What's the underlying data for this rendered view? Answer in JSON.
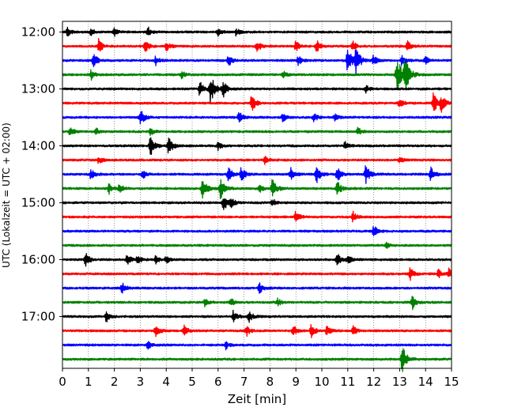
{
  "chart_data": {
    "type": "line",
    "title": "",
    "xlabel": "Zeit  [min]",
    "ylabel": "UTC (Lokalzeit = UTC + 02:00)",
    "xlim": [
      0,
      15
    ],
    "x_ticks": [
      "0",
      "1",
      "2",
      "3",
      "4",
      "5",
      "6",
      "7",
      "8",
      "9",
      "10",
      "11",
      "12",
      "13",
      "14",
      "15"
    ],
    "y_ticks": [
      {
        "label": "12:00",
        "row": 0
      },
      {
        "label": "13:00",
        "row": 4
      },
      {
        "label": "14:00",
        "row": 8
      },
      {
        "label": "15:00",
        "row": 12
      },
      {
        "label": "16:00",
        "row": 16
      },
      {
        "label": "17:00",
        "row": 20
      }
    ],
    "grid": "vertical dotted at each minute",
    "trace_interval_min": 15,
    "colors": [
      "#000000",
      "#ff0000",
      "#0000ff",
      "#008000"
    ],
    "series": [
      {
        "start": "12:00",
        "color": "#000000",
        "events": [
          [
            0.2,
            0.35
          ],
          [
            1.1,
            0.3
          ],
          [
            2.0,
            0.3
          ],
          [
            3.3,
            0.4
          ],
          [
            6.0,
            0.3
          ],
          [
            6.7,
            0.3
          ]
        ]
      },
      {
        "start": "12:15",
        "color": "#ff0000",
        "events": [
          [
            1.4,
            0.6
          ],
          [
            3.2,
            0.5
          ],
          [
            4.0,
            0.4
          ],
          [
            7.5,
            0.5
          ],
          [
            9.0,
            0.4
          ],
          [
            9.8,
            0.5
          ],
          [
            11.2,
            0.4
          ],
          [
            13.3,
            0.5
          ]
        ]
      },
      {
        "start": "12:30",
        "color": "#0000ff",
        "events": [
          [
            1.2,
            0.6
          ],
          [
            3.6,
            0.35
          ],
          [
            6.4,
            0.45
          ],
          [
            9.1,
            0.4
          ],
          [
            11.0,
            1.0
          ],
          [
            11.3,
            1.1
          ],
          [
            12.0,
            0.4
          ],
          [
            13.1,
            0.5
          ],
          [
            14.0,
            0.3
          ]
        ]
      },
      {
        "start": "12:45",
        "color": "#008000",
        "events": [
          [
            1.1,
            0.4
          ],
          [
            4.6,
            0.3
          ],
          [
            8.5,
            0.3
          ],
          [
            12.9,
            1.4
          ],
          [
            13.2,
            1.3
          ]
        ]
      },
      {
        "start": "13:00",
        "color": "#000000",
        "events": [
          [
            5.3,
            0.6
          ],
          [
            5.7,
            1.2
          ],
          [
            6.2,
            0.6
          ],
          [
            11.7,
            0.3
          ]
        ]
      },
      {
        "start": "13:15",
        "color": "#ff0000",
        "events": [
          [
            7.3,
            0.7
          ],
          [
            13.0,
            0.45
          ],
          [
            14.3,
            0.8
          ],
          [
            14.6,
            0.7
          ]
        ]
      },
      {
        "start": "13:30",
        "color": "#0000ff",
        "events": [
          [
            3.0,
            0.7
          ],
          [
            6.8,
            0.5
          ],
          [
            8.5,
            0.35
          ],
          [
            9.7,
            0.35
          ],
          [
            10.5,
            0.3
          ]
        ]
      },
      {
        "start": "13:45",
        "color": "#008000",
        "events": [
          [
            0.3,
            0.4
          ],
          [
            1.3,
            0.25
          ],
          [
            3.4,
            0.3
          ],
          [
            11.4,
            0.3
          ]
        ]
      },
      {
        "start": "14:00",
        "color": "#000000",
        "events": [
          [
            3.4,
            0.8
          ],
          [
            4.1,
            0.7
          ],
          [
            6.0,
            0.3
          ],
          [
            10.9,
            0.3
          ]
        ]
      },
      {
        "start": "14:15",
        "color": "#ff0000",
        "events": [
          [
            1.4,
            0.3
          ],
          [
            7.8,
            0.3
          ],
          [
            13.0,
            0.25
          ]
        ]
      },
      {
        "start": "14:30",
        "color": "#0000ff",
        "events": [
          [
            1.1,
            0.4
          ],
          [
            3.1,
            0.35
          ],
          [
            6.4,
            0.6
          ],
          [
            6.9,
            0.6
          ],
          [
            8.8,
            0.5
          ],
          [
            9.8,
            0.65
          ],
          [
            10.6,
            0.6
          ],
          [
            11.7,
            0.8
          ],
          [
            14.2,
            0.6
          ]
        ]
      },
      {
        "start": "14:45",
        "color": "#008000",
        "events": [
          [
            1.8,
            0.4
          ],
          [
            2.2,
            0.4
          ],
          [
            5.4,
            0.9
          ],
          [
            6.1,
            0.8
          ],
          [
            7.6,
            0.3
          ],
          [
            8.1,
            0.8
          ],
          [
            10.6,
            0.6
          ]
        ]
      },
      {
        "start": "15:00",
        "color": "#000000",
        "events": [
          [
            6.2,
            0.7
          ],
          [
            6.5,
            0.4
          ],
          [
            8.1,
            0.3
          ]
        ]
      },
      {
        "start": "15:15",
        "color": "#ff0000",
        "events": [
          [
            9.0,
            0.45
          ],
          [
            11.2,
            0.45
          ]
        ]
      },
      {
        "start": "15:30",
        "color": "#0000ff",
        "events": [
          [
            12.0,
            0.45
          ]
        ]
      },
      {
        "start": "15:45",
        "color": "#008000",
        "events": [
          [
            12.5,
            0.2
          ]
        ]
      },
      {
        "start": "16:00",
        "color": "#000000",
        "events": [
          [
            0.9,
            0.55
          ],
          [
            2.5,
            0.45
          ],
          [
            2.9,
            0.4
          ],
          [
            3.6,
            0.3
          ],
          [
            4.0,
            0.3
          ],
          [
            10.6,
            0.5
          ],
          [
            11.0,
            0.4
          ]
        ]
      },
      {
        "start": "16:15",
        "color": "#ff0000",
        "events": [
          [
            13.4,
            0.5
          ],
          [
            14.5,
            0.4
          ],
          [
            14.9,
            0.4
          ]
        ]
      },
      {
        "start": "16:30",
        "color": "#0000ff",
        "events": [
          [
            2.3,
            0.45
          ],
          [
            7.6,
            0.4
          ]
        ]
      },
      {
        "start": "16:45",
        "color": "#008000",
        "events": [
          [
            5.5,
            0.3
          ],
          [
            6.5,
            0.3
          ],
          [
            8.3,
            0.3
          ],
          [
            13.5,
            0.5
          ]
        ]
      },
      {
        "start": "17:00",
        "color": "#000000",
        "events": [
          [
            1.7,
            0.45
          ],
          [
            6.6,
            0.5
          ],
          [
            7.2,
            0.45
          ]
        ]
      },
      {
        "start": "17:15",
        "color": "#ff0000",
        "events": [
          [
            3.6,
            0.5
          ],
          [
            4.7,
            0.4
          ],
          [
            7.1,
            0.4
          ],
          [
            8.9,
            0.5
          ],
          [
            9.6,
            0.5
          ],
          [
            10.2,
            0.4
          ],
          [
            11.2,
            0.4
          ]
        ]
      },
      {
        "start": "17:30",
        "color": "#0000ff",
        "events": [
          [
            3.3,
            0.3
          ],
          [
            6.3,
            0.3
          ]
        ]
      },
      {
        "start": "17:45",
        "color": "#008000",
        "events": [
          [
            13.1,
            1.1
          ]
        ]
      }
    ]
  }
}
